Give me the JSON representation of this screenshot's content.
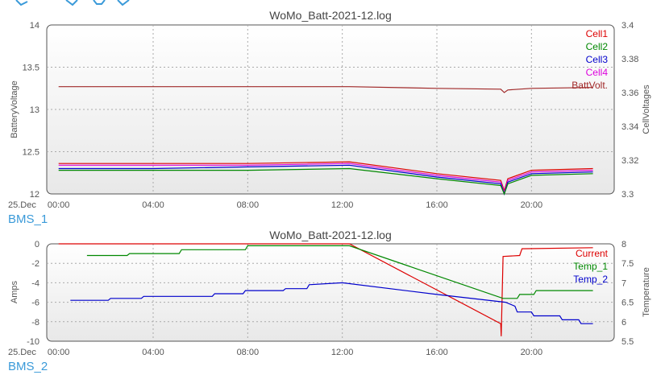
{
  "toolbar": {
    "icons": [
      "zoom-icon",
      "pan-icon",
      "back-icon",
      "forward-icon"
    ]
  },
  "charts": [
    {
      "section_label": "BMS_1",
      "title": "WoMo_Batt-2021-12.log",
      "date_label": "25.Dec",
      "ylabel_left": "BatteryVoltage",
      "ylabel_right": "CellVoltages",
      "left_ticks": [
        "14",
        "13.5",
        "13",
        "12.5",
        "12"
      ],
      "right_ticks": [
        "3.4",
        "3.38",
        "3.36",
        "3.34",
        "3.32",
        "3.3"
      ],
      "x_ticks": [
        "00:00",
        "04:00",
        "08:00",
        "12:00",
        "16:00",
        "20:00"
      ],
      "legend": [
        "Cell1",
        "Cell2",
        "Cell3",
        "Cell4",
        "BattVolt."
      ]
    },
    {
      "section_label": "BMS_2",
      "title": "WoMo_Batt-2021-12.log",
      "date_label": "25.Dec",
      "ylabel_left": "Amps",
      "ylabel_right": "Temperature",
      "left_ticks": [
        "0",
        "-2",
        "-4",
        "-6",
        "-8",
        "-10"
      ],
      "right_ticks": [
        "8",
        "7.5",
        "7",
        "6.5",
        "6",
        "5.5"
      ],
      "x_ticks": [
        "00:00",
        "04:00",
        "08:00",
        "12:00",
        "16:00",
        "20:00"
      ],
      "legend": [
        "Current",
        "Temp_1",
        "Temp_2"
      ]
    }
  ],
  "chart_data": [
    {
      "type": "line",
      "title": "WoMo_Batt-2021-12.log",
      "ylabel": "BatteryVoltage",
      "y2label": "CellVoltages",
      "xlim": [
        -0.5,
        23.5
      ],
      "ylim": [
        12,
        14
      ],
      "y2lim": [
        3.3,
        3.4
      ],
      "grid": true,
      "legend_position": "top-right",
      "colors": {
        "Cell1": "#dd0000",
        "Cell2": "#008800",
        "Cell3": "#0000cc",
        "Cell4": "#dd00dd",
        "BattVolt.": "#a02828"
      },
      "series": [
        {
          "name": "BattVolt.",
          "axis": "left",
          "x": [
            0,
            4,
            8,
            12.3,
            16,
            18.7,
            18.85,
            19,
            20,
            22.6
          ],
          "y": [
            13.27,
            13.27,
            13.27,
            13.27,
            13.25,
            13.24,
            13.2,
            13.23,
            13.25,
            13.26
          ]
        },
        {
          "name": "Cell1",
          "axis": "right",
          "x": [
            0,
            4,
            8,
            12.3,
            16,
            18.7,
            18.85,
            19,
            20,
            22.6
          ],
          "y": [
            3.318,
            3.318,
            3.318,
            3.319,
            3.312,
            3.308,
            3.302,
            3.309,
            3.314,
            3.315
          ]
        },
        {
          "name": "Cell4",
          "axis": "right",
          "x": [
            0,
            4,
            8,
            12.3,
            16,
            18.7,
            18.85,
            19,
            20,
            22.6
          ],
          "y": [
            3.317,
            3.317,
            3.317,
            3.318,
            3.311,
            3.307,
            3.301,
            3.308,
            3.313,
            3.314
          ]
        },
        {
          "name": "Cell3",
          "axis": "right",
          "x": [
            0,
            4,
            8,
            12.3,
            16,
            18.7,
            18.85,
            19,
            20,
            22.6
          ],
          "y": [
            3.315,
            3.315,
            3.316,
            3.317,
            3.31,
            3.306,
            3.3,
            3.307,
            3.312,
            3.313
          ]
        },
        {
          "name": "Cell2",
          "axis": "right",
          "x": [
            0,
            4,
            8,
            12.3,
            16,
            18.7,
            18.85,
            19,
            20,
            22.6
          ],
          "y": [
            3.314,
            3.314,
            3.314,
            3.315,
            3.309,
            3.305,
            3.3,
            3.306,
            3.311,
            3.312
          ]
        }
      ]
    },
    {
      "type": "line",
      "title": "WoMo_Batt-2021-12.log",
      "ylabel": "Amps",
      "y2label": "Temperature",
      "xlim": [
        -0.5,
        23.5
      ],
      "ylim": [
        -10,
        0
      ],
      "y2lim": [
        5.5,
        8
      ],
      "grid": true,
      "legend_position": "top-right",
      "colors": {
        "Current": "#dd0000",
        "Temp_1": "#008800",
        "Temp_2": "#0000cc"
      },
      "series": [
        {
          "name": "Current",
          "axis": "left",
          "x": [
            0,
            4,
            8,
            12.3,
            18.7,
            18.72,
            18.8,
            19.5,
            19.6,
            22.6
          ],
          "y": [
            0,
            0,
            0,
            0,
            -8.2,
            -9.5,
            -1.3,
            -1.2,
            -0.5,
            -0.4
          ]
        },
        {
          "name": "Temp_1",
          "axis": "right",
          "x": [
            1.2,
            2.9,
            3,
            5.1,
            5.2,
            7.9,
            8,
            12.3,
            18.8,
            19.4,
            19.5,
            20.1,
            20.2,
            22.6
          ],
          "y": [
            7.7,
            7.7,
            7.75,
            7.75,
            7.85,
            7.85,
            7.95,
            7.95,
            6.6,
            6.6,
            6.7,
            6.7,
            6.8,
            6.8
          ]
        },
        {
          "name": "Temp_2",
          "axis": "right",
          "x": [
            0.5,
            2.1,
            2.2,
            3.5,
            3.6,
            6.5,
            6.6,
            7.8,
            7.9,
            9.5,
            9.6,
            10.5,
            10.6,
            12,
            16,
            18.9,
            19.3,
            19.4,
            20,
            20.1,
            21.2,
            21.3,
            22,
            22.1,
            22.6
          ],
          "y": [
            6.55,
            6.55,
            6.6,
            6.6,
            6.65,
            6.65,
            6.72,
            6.72,
            6.8,
            6.8,
            6.85,
            6.85,
            6.95,
            7.0,
            6.7,
            6.5,
            6.4,
            6.25,
            6.25,
            6.15,
            6.15,
            6.05,
            6.05,
            5.95,
            5.95
          ]
        }
      ]
    }
  ]
}
